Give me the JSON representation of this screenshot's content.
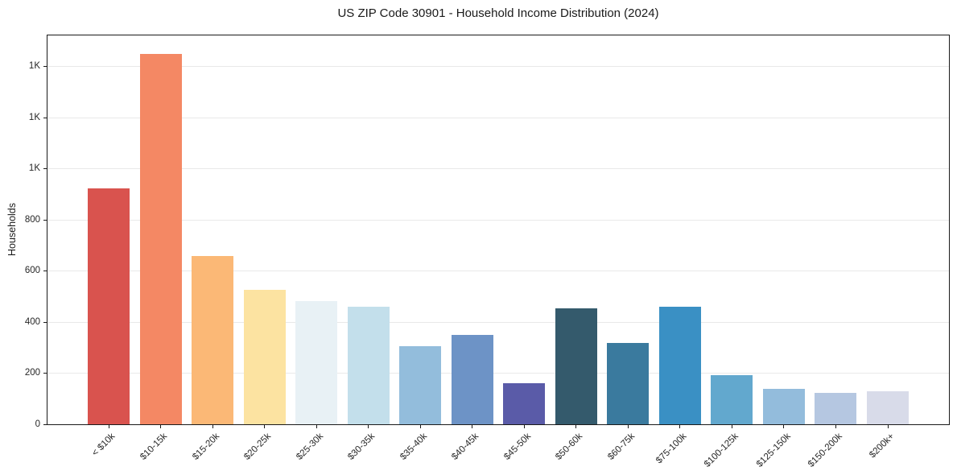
{
  "figure": {
    "title": "US ZIP Code 30901 - Household Income Distribution (2024)"
  },
  "chart_data": {
    "type": "bar",
    "title": "US ZIP Code 30901 - Household Income Distribution (2024)",
    "xlabel": "",
    "ylabel": "Households",
    "categories": [
      "< $10k",
      "$10-15k",
      "$15-20k",
      "$20-25k",
      "$25-30k",
      "$30-35k",
      "$35-40k",
      "$40-45k",
      "$45-50k",
      "$50-60k",
      "$60-75k",
      "$75-100k",
      "$100-125k",
      "$125-150k",
      "$150-200k",
      "$200k+"
    ],
    "values": [
      925,
      1450,
      658,
      528,
      483,
      460,
      305,
      350,
      162,
      455,
      318,
      461,
      192,
      139,
      122,
      130
    ],
    "bar_colors": [
      "#d9534e",
      "#f48864",
      "#fbb876",
      "#fce3a1",
      "#e8f1f5",
      "#c3dfeb",
      "#93bddc",
      "#6d93c6",
      "#5a5ba8",
      "#345a6c",
      "#3a7a9e",
      "#3a90c4",
      "#62a8ce",
      "#93bcdc",
      "#b5c7e1",
      "#d8dbe9"
    ],
    "ylim": [
      0,
      1522.5
    ],
    "yticks": [
      {
        "value": 0,
        "label": "0"
      },
      {
        "value": 200,
        "label": "200"
      },
      {
        "value": 400,
        "label": "400"
      },
      {
        "value": 600,
        "label": "600"
      },
      {
        "value": 800,
        "label": "800"
      },
      {
        "value": 1000,
        "label": "1K"
      },
      {
        "value": 1200,
        "label": "1K"
      },
      {
        "value": 1400,
        "label": "1K"
      }
    ],
    "grid": true,
    "gridline_color": "#e9e9e9",
    "axis_color": "#1a1a1a",
    "text_color": "#262626",
    "background": "#ffffff",
    "legend": false
  }
}
